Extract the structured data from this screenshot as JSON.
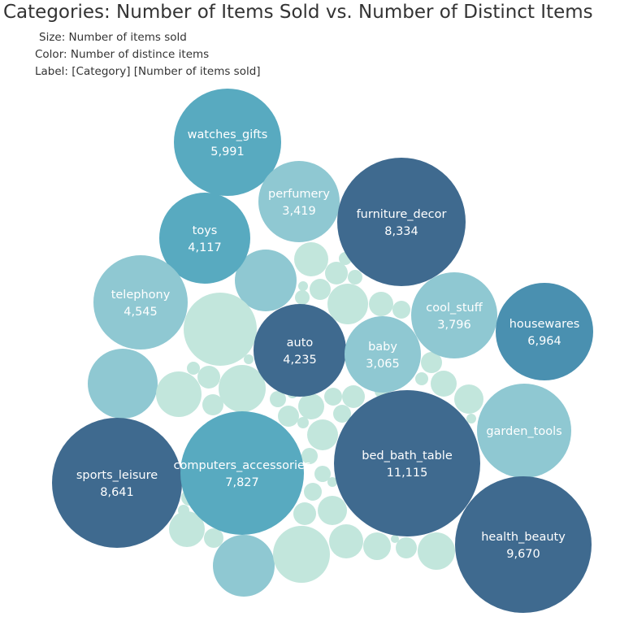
{
  "chart_data": {
    "type": "packed_bubble",
    "title": "Categories: Number of Items Sold vs. Number of Distinct Items",
    "legend": {
      "size": "Size: Number of items sold",
      "color": "Color: Number of distince items",
      "label": "Label: [Category] [Number of items sold]"
    },
    "colors": {
      "dark": "#3f6a8f",
      "medium": "#4a90b0",
      "teal": "#58aac0",
      "light": "#8fc8d2",
      "pale": "#c2e6dc"
    },
    "bubbles": [
      {
        "name": "watches_gifts",
        "value": 5991,
        "color": "teal"
      },
      {
        "name": "perfumery",
        "value": 3419,
        "color": "light"
      },
      {
        "name": "furniture_decor",
        "value": 8334,
        "color": "dark"
      },
      {
        "name": "toys",
        "value": 4117,
        "color": "teal"
      },
      {
        "name": "telephony",
        "value": 4545,
        "color": "light"
      },
      {
        "name": "cool_stuff",
        "value": 3796,
        "color": "light"
      },
      {
        "name": "housewares",
        "value": 6964,
        "color": "medium"
      },
      {
        "name": "auto",
        "value": 4235,
        "color": "dark"
      },
      {
        "name": "baby",
        "value": 3065,
        "color": "light"
      },
      {
        "name": "garden_tools",
        "value": 4500,
        "color": "light",
        "show_value": false
      },
      {
        "name": "sports_leisure",
        "value": 8641,
        "color": "dark"
      },
      {
        "name": "computers_accessories",
        "value": 7827,
        "color": "teal"
      },
      {
        "name": "bed_bath_table",
        "value": 11115,
        "color": "dark"
      },
      {
        "name": "health_beauty",
        "value": 9670,
        "color": "dark"
      }
    ]
  }
}
